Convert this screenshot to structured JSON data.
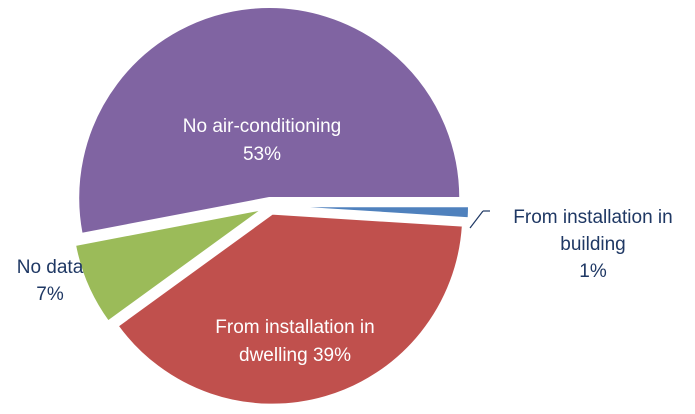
{
  "chart_data": {
    "type": "pie",
    "title": "",
    "slices": [
      {
        "label": "No air-conditioning",
        "value": 53,
        "value_label": "53%",
        "color": "#8064A2"
      },
      {
        "label": "From installation in building",
        "value": 1,
        "value_label": "1%",
        "color": "#4F81BD"
      },
      {
        "label": "From installation in dwelling",
        "value": 39,
        "value_label": "39%",
        "color": "#C0504D"
      },
      {
        "label": "No data",
        "value": 7,
        "value_label": "7%",
        "color": "#9BBB59"
      }
    ],
    "data_labels": {
      "no_ac": {
        "line1": "No air-conditioning",
        "line2": "53%",
        "color": "#ffffff"
      },
      "building": {
        "line1": "From installation in",
        "line2": "building",
        "line3": "1%",
        "color": "#1F3864"
      },
      "dwelling": {
        "line1": "From installation in",
        "line2": "dwelling 39%",
        "color": "#ffffff"
      },
      "no_data": {
        "line1": "No data",
        "line2": "7%",
        "color": "#1F3864"
      }
    },
    "legend": "none"
  }
}
